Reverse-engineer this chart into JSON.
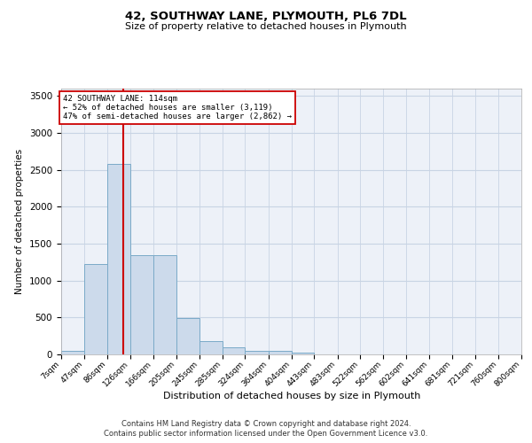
{
  "title1": "42, SOUTHWAY LANE, PLYMOUTH, PL6 7DL",
  "title2": "Size of property relative to detached houses in Plymouth",
  "xlabel": "Distribution of detached houses by size in Plymouth",
  "ylabel": "Number of detached properties",
  "bar_color": "#ccdaeb",
  "bar_edge_color": "#7aaac8",
  "grid_color": "#c8d4e4",
  "background_color": "#edf1f8",
  "vline_color": "#cc0000",
  "vline_x": 114,
  "annotation_title": "42 SOUTHWAY LANE: 114sqm",
  "annotation_line1": "← 52% of detached houses are smaller (3,119)",
  "annotation_line2": "47% of semi-detached houses are larger (2,862) →",
  "bin_edges": [
    7,
    47,
    86,
    126,
    166,
    205,
    245,
    285,
    324,
    364,
    404,
    443,
    483,
    522,
    562,
    602,
    641,
    681,
    721,
    760,
    800
  ],
  "bin_counts": [
    52,
    1220,
    2580,
    1340,
    1340,
    490,
    185,
    100,
    52,
    50,
    30,
    0,
    0,
    0,
    0,
    0,
    0,
    0,
    0,
    0
  ],
  "ylim_max": 3600,
  "yticks": [
    0,
    500,
    1000,
    1500,
    2000,
    2500,
    3000,
    3500
  ],
  "footer1": "Contains HM Land Registry data © Crown copyright and database right 2024.",
  "footer2": "Contains public sector information licensed under the Open Government Licence v3.0."
}
